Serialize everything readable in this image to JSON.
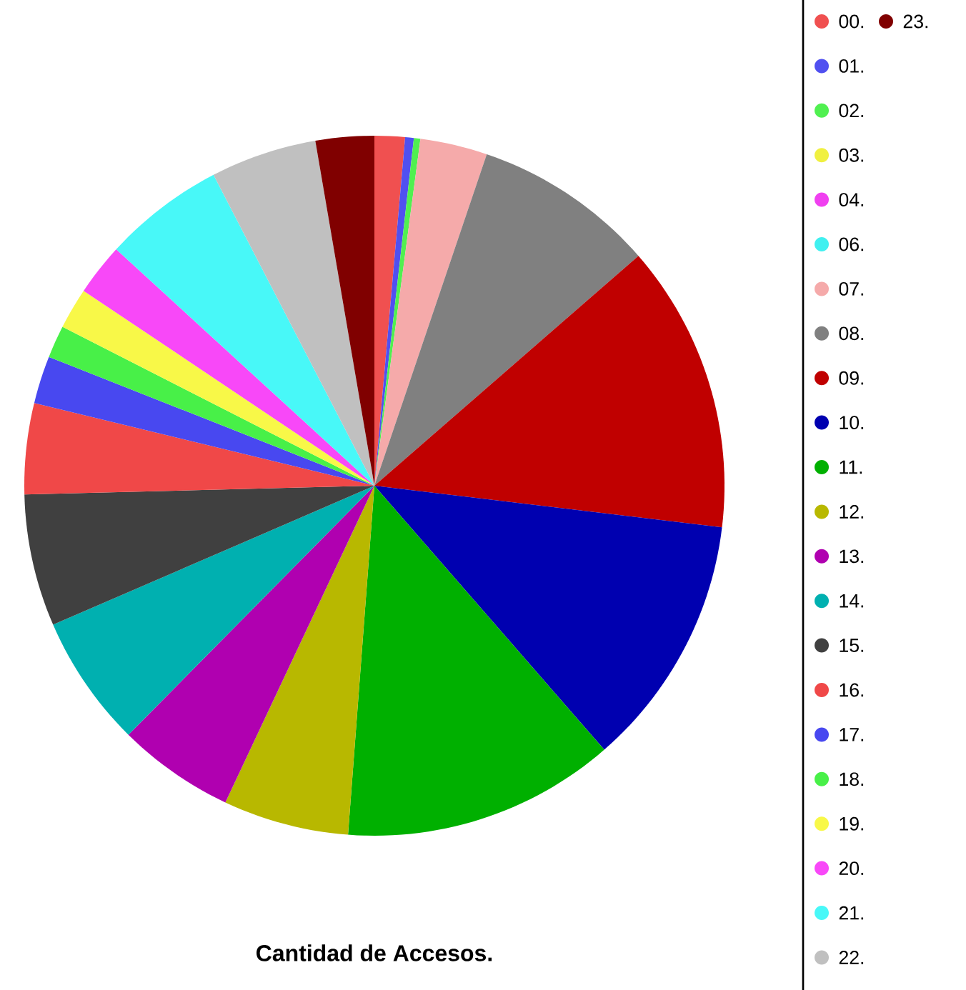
{
  "chart_data": {
    "type": "pie",
    "title": "Cantidad de Accesos.",
    "categories": [
      "00.",
      "01.",
      "02.",
      "03.",
      "04.",
      "06.",
      "07.",
      "08.",
      "09.",
      "10.",
      "11.",
      "12.",
      "13.",
      "14.",
      "15.",
      "16.",
      "17.",
      "18.",
      "19.",
      "20.",
      "21.",
      "22.",
      "23."
    ],
    "values": [
      1.4,
      0.4,
      0.3,
      0,
      0,
      0,
      3.1,
      8.4,
      13.3,
      11.7,
      12.6,
      5.8,
      5.4,
      6.1,
      6.1,
      4.2,
      2.2,
      1.5,
      1.9,
      2.4,
      5.6,
      4.9,
      2.7
    ],
    "colors": [
      "#f05050",
      "#5050f0",
      "#50f050",
      "#f0f040",
      "#f040f0",
      "#40f0f0",
      "#f5aaaa",
      "#808080",
      "#c00000",
      "#0000b0",
      "#00b000",
      "#b8b800",
      "#b000b0",
      "#00b0b0",
      "#404040",
      "#f04848",
      "#4848f0",
      "#48f048",
      "#f8f848",
      "#f848f8",
      "#48f8f8",
      "#c0c0c0",
      "#800000"
    ],
    "legend": "right"
  }
}
